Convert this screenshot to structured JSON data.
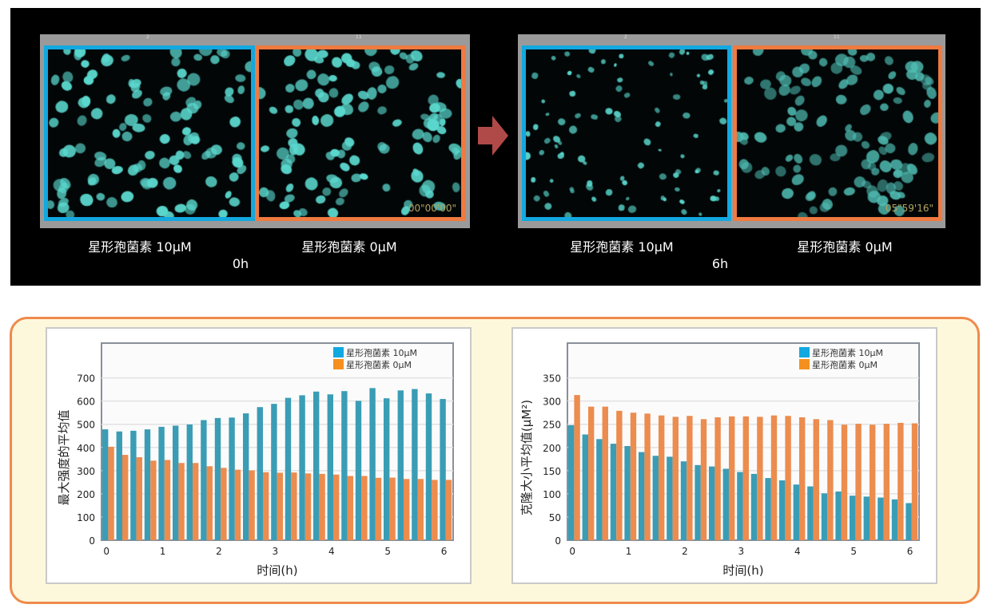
{
  "panels": [
    {
      "time": "0h",
      "cells": [
        {
          "label": "星形孢菌素 10μM",
          "num": "2",
          "color": "#12a8e0"
        },
        {
          "label": "星形孢菌素 0μM",
          "num": "11",
          "color": "#f07a40",
          "timestamp": "00\"00'00\""
        }
      ]
    },
    {
      "time": "6h",
      "cells": [
        {
          "label": "星形孢菌素 10μM",
          "num": "2",
          "color": "#12a8e0"
        },
        {
          "label": "星形孢菌素 0μM",
          "num": "11",
          "color": "#f07a40",
          "timestamp": "05\"59'16\""
        }
      ]
    }
  ],
  "chart_data": [
    {
      "type": "bar",
      "xlabel": "时间(h)",
      "ylabel": "最大强度的平均值",
      "ylim": [
        0,
        850
      ],
      "yticks": [
        0,
        100,
        200,
        300,
        400,
        500,
        600,
        700
      ],
      "xticks": [
        "0",
        "1",
        "2",
        "3",
        "4",
        "5",
        "6"
      ],
      "x": [
        0,
        0.25,
        0.5,
        0.75,
        1,
        1.25,
        1.5,
        1.75,
        2,
        2.25,
        2.5,
        2.75,
        3,
        3.25,
        3.5,
        3.75,
        4,
        4.25,
        4.5,
        4.75,
        5,
        5.25,
        5.5,
        5.75,
        6
      ],
      "legend_position": "top-right",
      "grid": true,
      "series": [
        {
          "name": "星形孢菌素 10μM",
          "color": "#3a9db5",
          "legend_color": "#12a8e0",
          "values": [
            478,
            469,
            472,
            478,
            489,
            494,
            499,
            518,
            527,
            529,
            547,
            574,
            588,
            614,
            625,
            641,
            629,
            643,
            601,
            656,
            612,
            646,
            652,
            633,
            609
          ]
        },
        {
          "name": "星形孢菌素  0μM",
          "color": "#ec8c4e",
          "legend_color": "#f5901e",
          "values": [
            403,
            368,
            358,
            343,
            346,
            333,
            333,
            319,
            312,
            304,
            301,
            293,
            291,
            292,
            288,
            286,
            283,
            277,
            277,
            269,
            270,
            264,
            264,
            260,
            260
          ]
        }
      ]
    },
    {
      "type": "bar",
      "xlabel": "时间(h)",
      "ylabel": "克隆大小平均值(μM²)",
      "ylim": [
        0,
        425
      ],
      "yticks": [
        0,
        50,
        100,
        150,
        200,
        250,
        300,
        350
      ],
      "xticks": [
        "0",
        "1",
        "2",
        "3",
        "4",
        "5",
        "6"
      ],
      "x": [
        0,
        0.25,
        0.5,
        0.75,
        1,
        1.25,
        1.5,
        1.75,
        2,
        2.25,
        2.5,
        2.75,
        3,
        3.25,
        3.5,
        3.75,
        4,
        4.25,
        4.5,
        4.75,
        5,
        5.25,
        5.5,
        5.75,
        6
      ],
      "legend_position": "top-right",
      "grid": true,
      "series": [
        {
          "name": "星形孢菌素 10μM",
          "color": "#3a9db5",
          "legend_color": "#12a8e0",
          "values": [
            248,
            228,
            218,
            208,
            203,
            190,
            182,
            180,
            170,
            162,
            159,
            154,
            147,
            143,
            134,
            129,
            120,
            116,
            101,
            105,
            96,
            94,
            92,
            88,
            80
          ]
        },
        {
          "name": "星形孢菌素  0μM",
          "color": "#ec8c4e",
          "legend_color": "#f5901e",
          "values": [
            313,
            288,
            288,
            279,
            275,
            273,
            269,
            266,
            268,
            261,
            265,
            267,
            267,
            266,
            269,
            268,
            265,
            261,
            259,
            249,
            251,
            249,
            251,
            253,
            252
          ]
        }
      ]
    }
  ]
}
